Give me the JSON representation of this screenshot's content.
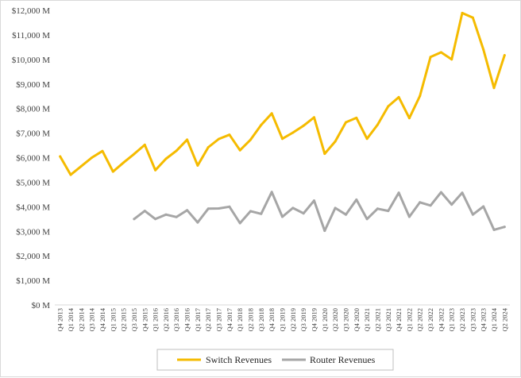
{
  "chart_data": {
    "type": "line",
    "title": "",
    "xlabel": "",
    "ylabel": "",
    "ylim": [
      0,
      12000
    ],
    "y_step": 1000,
    "y_tick_labels": [
      "$0 M",
      "$1,000 M",
      "$2,000 M",
      "$3,000 M",
      "$4,000 M",
      "$5,000 M",
      "$6,000 M",
      "$7,000 M",
      "$8,000 M",
      "$9,000 M",
      "$10,000 M",
      "$11,000 M",
      "$12,000 M"
    ],
    "grid": false,
    "legend_position": "bottom",
    "categories": [
      "Q4 2013",
      "Q1 2014",
      "Q2 2014",
      "Q3 2014",
      "Q4 2014",
      "Q1 2015",
      "Q2 2015",
      "Q3 2015",
      "Q4 2015",
      "Q1 2016",
      "Q2 2016",
      "Q3 2016",
      "Q4 2016",
      "Q1 2017",
      "Q2 2017",
      "Q3 2017",
      "Q4 2017",
      "Q1 2018",
      "Q2 2018",
      "Q3 2018",
      "Q4 2018",
      "Q1 2019",
      "Q2 2019",
      "Q3 2019",
      "Q4 2019",
      "Q1 2020",
      "Q2 2020",
      "Q3 2020",
      "Q4 2020",
      "Q1 2021",
      "Q2 2021",
      "Q3 2021",
      "Q4 2021",
      "Q1 2022",
      "Q2 2022",
      "Q3 2022",
      "Q4 2022",
      "Q1 2023",
      "Q2 2023",
      "Q3 2023",
      "Q4 2023",
      "Q1 2024",
      "Q2 2024"
    ],
    "series": [
      {
        "name": "Switch Revenues",
        "color": "#f5bb00",
        "values": [
          6050,
          5300,
          5650,
          6000,
          6270,
          5430,
          5800,
          6150,
          6520,
          5490,
          5950,
          6280,
          6730,
          5680,
          6420,
          6760,
          6930,
          6300,
          6730,
          7330,
          7800,
          6770,
          7020,
          7300,
          7640,
          6160,
          6660,
          7440,
          7620,
          6770,
          7340,
          8090,
          8460,
          7610,
          8510,
          10100,
          10290,
          10000,
          11890,
          11700,
          10400,
          8840,
          10170
        ]
      },
      {
        "name": "Router Revenues",
        "color": "#a6a6a6",
        "values": [
          null,
          null,
          null,
          null,
          null,
          null,
          null,
          3500,
          3830,
          3500,
          3680,
          3580,
          3860,
          3360,
          3920,
          3930,
          4000,
          3330,
          3820,
          3710,
          4600,
          3590,
          3950,
          3730,
          4250,
          3020,
          3950,
          3680,
          4290,
          3500,
          3920,
          3830,
          4570,
          3590,
          4180,
          4050,
          4590,
          4090,
          4570,
          3680,
          4010,
          3060,
          3180
        ]
      }
    ]
  }
}
